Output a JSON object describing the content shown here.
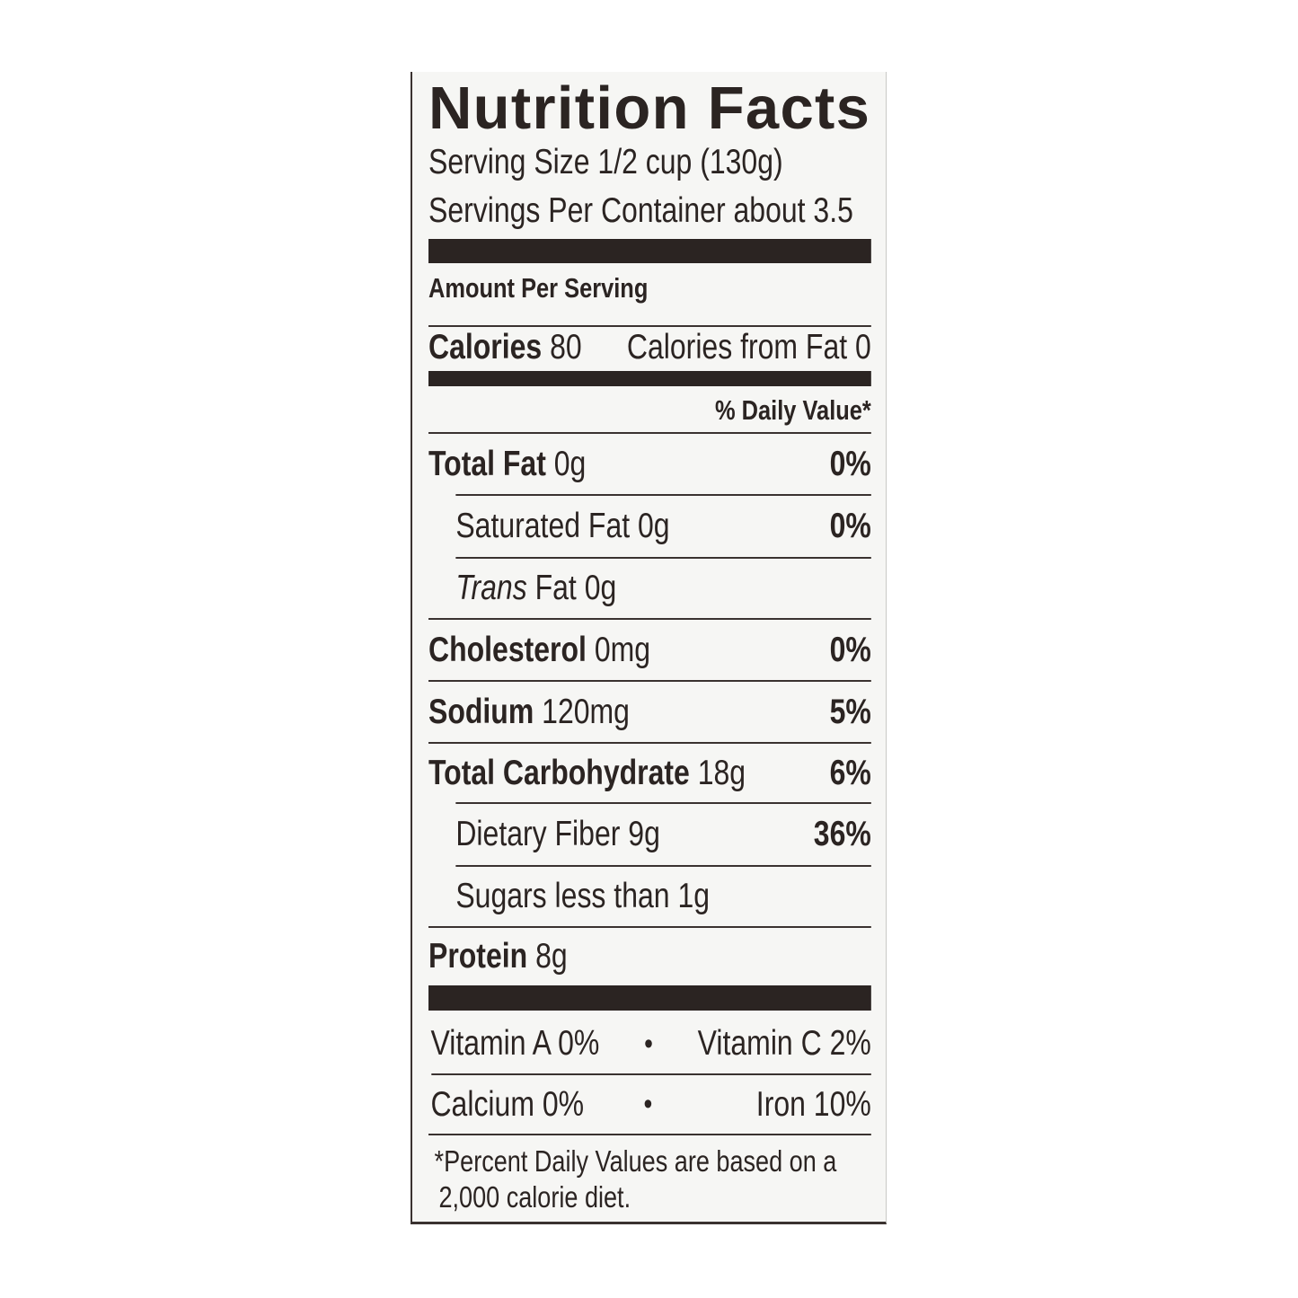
{
  "title": "Nutrition Facts",
  "serving_size": "Serving Size 1/2 cup (130g)",
  "servings_per_container": "Servings Per Container about 3.5",
  "amount_per_serving": "Amount Per Serving",
  "calories": {
    "label": "Calories",
    "value": "80",
    "from_fat": "Calories from Fat 0"
  },
  "daily_value_header": "% Daily Value*",
  "nutrients": [
    {
      "label": "Total Fat",
      "amount": "0g",
      "dv": "0%"
    },
    {
      "label": "Saturated Fat",
      "amount": "0g",
      "dv": "0%"
    },
    {
      "label": "Trans",
      "label_suffix": "Fat",
      "amount": "0g",
      "dv": ""
    },
    {
      "label": "Cholesterol",
      "amount": "0mg",
      "dv": "0%"
    },
    {
      "label": "Sodium",
      "amount": "120mg",
      "dv": "5%"
    },
    {
      "label": "Total Carbohydrate",
      "amount": "18g",
      "dv": "6%"
    },
    {
      "label": "Dietary Fiber",
      "amount": "9g",
      "dv": "36%"
    },
    {
      "label": "Sugars less than",
      "amount": "1g",
      "dv": ""
    },
    {
      "label": "Protein",
      "amount": "8g",
      "dv": ""
    }
  ],
  "vitamins": [
    {
      "left": "Vitamin A 0%",
      "right": "Vitamin C 2%"
    },
    {
      "left": "Calcium 0%",
      "right": "Iron 10%"
    }
  ],
  "separator": "•",
  "footnote": [
    "*Percent Daily Values are based on a",
    "2,000 calorie diet."
  ],
  "colors": {
    "ink": "#2b2422",
    "background": "#f6f6f4"
  }
}
